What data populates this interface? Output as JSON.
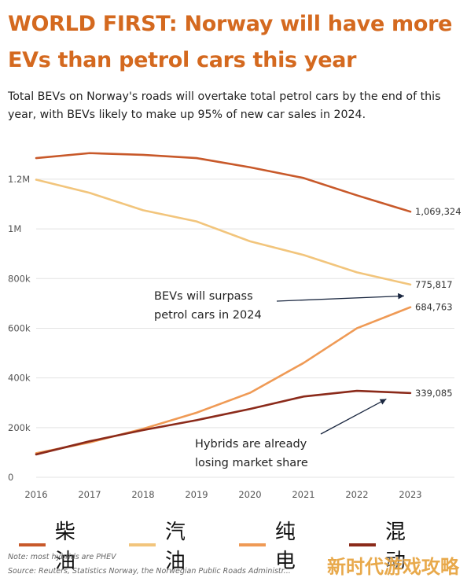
{
  "headline": "WORLD FIRST: Norway will have more EVs than petrol cars this year",
  "subtitle": "Total BEVs on Norway's roads will overtake total petrol cars by the end of this year, with BEVs likely to make up 95% of new car sales in 2024.",
  "note": "Note: most hybrids are PHEV",
  "source": "Source: Reuters, Statistics Norway, the Norwegian Public Roads Administr...",
  "watermark": "新时代游戏攻略",
  "chart_data": {
    "type": "line",
    "x": [
      2016,
      2017,
      2018,
      2019,
      2020,
      2021,
      2022,
      2023
    ],
    "ylim": [
      0,
      1320000
    ],
    "yticks": [
      0,
      200000,
      400000,
      600000,
      800000,
      1000000,
      1200000
    ],
    "ytick_labels": [
      "0",
      "200k",
      "400k",
      "600k",
      "800k",
      "1M",
      "1.2M"
    ],
    "grid": true,
    "legend_position": "bottom",
    "series": [
      {
        "name": "柴油",
        "color": "#c8592a",
        "values": [
          1285000,
          1305000,
          1298000,
          1285000,
          1248000,
          1205000,
          1135000,
          1069324
        ],
        "end_label": "1,069,324"
      },
      {
        "name": "汽油",
        "color": "#f2c57c",
        "values": [
          1198000,
          1145000,
          1075000,
          1030000,
          950000,
          895000,
          825000,
          775817
        ],
        "end_label": "775,817"
      },
      {
        "name": "纯电",
        "color": "#ef9a55",
        "values": [
          97000,
          140000,
          195000,
          260000,
          340000,
          460000,
          600000,
          684763
        ],
        "end_label": "684,763"
      },
      {
        "name": "混动",
        "color": "#8b2a1a",
        "values": [
          92000,
          145000,
          190000,
          230000,
          275000,
          325000,
          348000,
          339085
        ],
        "end_label": "339,085"
      }
    ],
    "annotations": [
      {
        "lines": [
          "BEVs will surpass",
          "petrol cars in 2024"
        ],
        "target_year": 2023,
        "target_value": 730000
      },
      {
        "lines": [
          "Hybrids are already",
          "losing market share"
        ],
        "target_year": 2022.55,
        "target_value": 315000
      }
    ]
  }
}
